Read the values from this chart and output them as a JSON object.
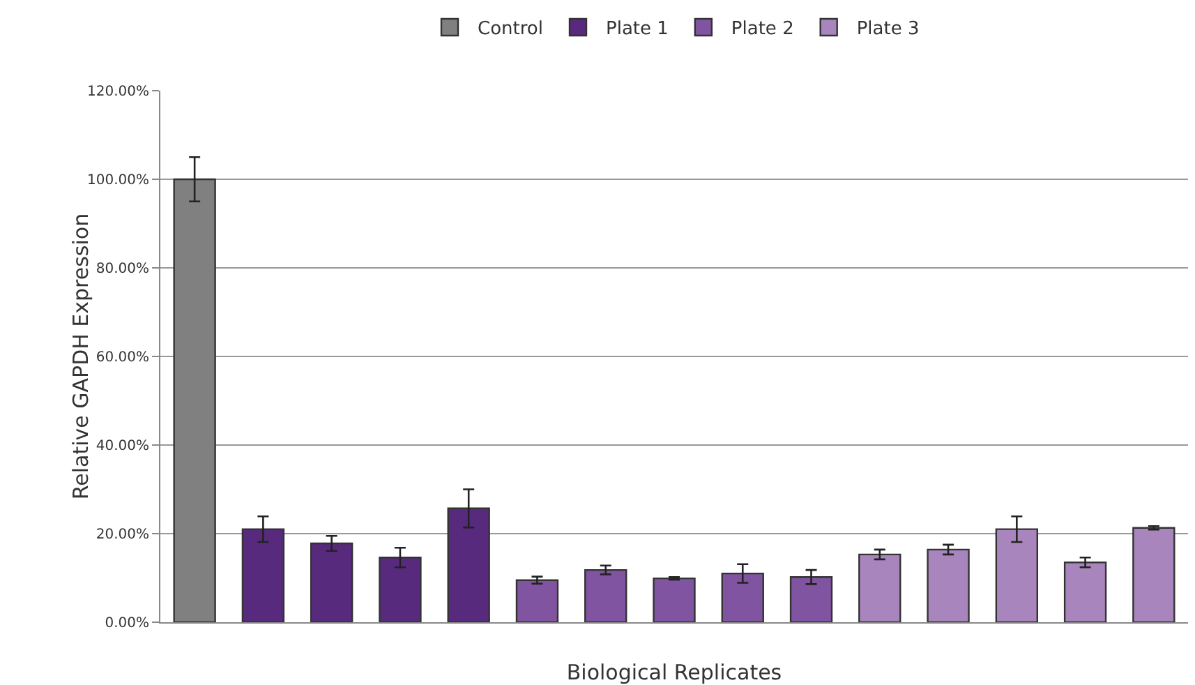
{
  "chart_data": {
    "type": "bar",
    "xlabel": "Biological Replicates",
    "ylabel": "Relative GAPDH Expression",
    "categories": [
      null,
      null,
      null,
      null,
      null,
      null,
      null,
      null,
      null,
      null,
      null,
      null,
      null,
      null,
      null
    ],
    "series": [
      {
        "name": "Control",
        "color": "#808080",
        "values": [
          100,
          null,
          null,
          null,
          null,
          null,
          null,
          null,
          null,
          null,
          null,
          null,
          null,
          null,
          null
        ],
        "errors": [
          5,
          null,
          null,
          null,
          null,
          null,
          null,
          null,
          null,
          null,
          null,
          null,
          null,
          null,
          null
        ]
      },
      {
        "name": "Plate 1",
        "color": "#582a7e",
        "values": [
          null,
          21,
          17.8,
          14.6,
          25.7,
          null,
          null,
          null,
          null,
          null,
          null,
          null,
          null,
          null,
          null
        ],
        "errors": [
          null,
          2.9,
          1.7,
          2.2,
          4.3,
          null,
          null,
          null,
          null,
          null,
          null,
          null,
          null,
          null,
          null
        ]
      },
      {
        "name": "Plate 2",
        "color": "#8154a2",
        "values": [
          null,
          null,
          null,
          null,
          null,
          9.5,
          11.8,
          9.9,
          11,
          10.2,
          null,
          null,
          null,
          null,
          null
        ],
        "errors": [
          null,
          null,
          null,
          null,
          null,
          0.8,
          1,
          0.3,
          2.1,
          1.6,
          null,
          null,
          null,
          null,
          null
        ]
      },
      {
        "name": "Plate 3",
        "color": "#a985bd",
        "values": [
          null,
          null,
          null,
          null,
          null,
          null,
          null,
          null,
          null,
          null,
          15.3,
          16.4,
          21,
          13.5,
          21.3
        ],
        "errors": [
          null,
          null,
          null,
          null,
          null,
          null,
          null,
          null,
          null,
          null,
          1.1,
          1.1,
          2.9,
          1.1,
          0.4
        ]
      }
    ],
    "ylim": [
      0,
      120
    ],
    "yticks": [
      {
        "value": 0,
        "label": "0.00%"
      },
      {
        "value": 20,
        "label": "20.00%"
      },
      {
        "value": 40,
        "label": "40.00%"
      },
      {
        "value": 60,
        "label": "60.00%"
      },
      {
        "value": 80,
        "label": "80.00%"
      },
      {
        "value": 100,
        "label": "100.00%"
      },
      {
        "value": 120,
        "label": "120.00%"
      }
    ],
    "grid": "y",
    "legend": "top"
  }
}
